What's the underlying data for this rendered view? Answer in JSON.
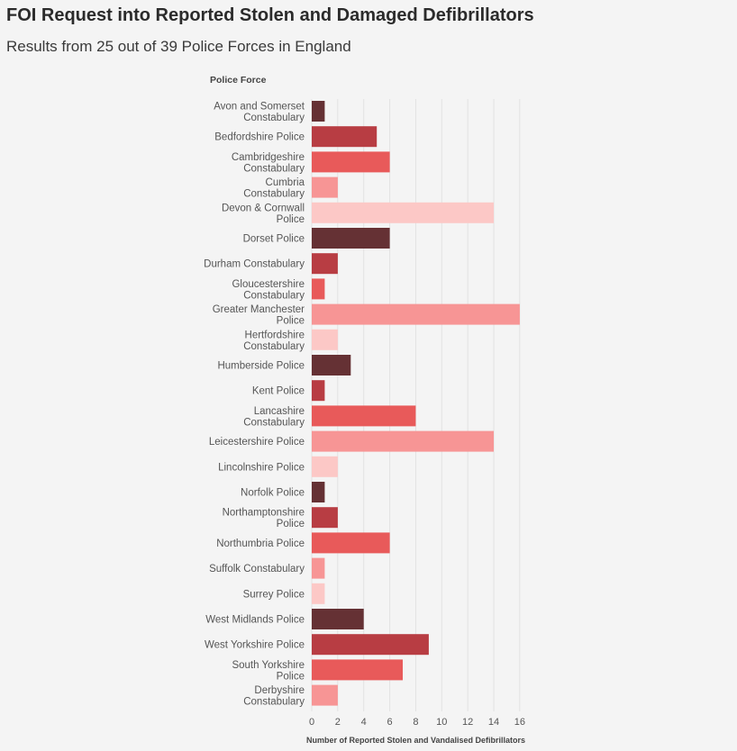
{
  "title": "FOI Request into Reported Stolen and Damaged Defibrillators",
  "subtitle": "Results from 25 out of 39 Police Forces in England",
  "chart_data": {
    "type": "bar",
    "orientation": "horizontal",
    "ylabel": "Police Force",
    "xlabel": "Number of Reported Stolen and Vandalised Defibrillators",
    "xlim": [
      0,
      16
    ],
    "xticks": [
      0,
      2,
      4,
      6,
      8,
      10,
      12,
      14,
      16
    ],
    "grid": true,
    "colors": [
      "#653134",
      "#b83d43",
      "#e85a5a",
      "#f79595",
      "#fcc8c6"
    ],
    "categories": [
      [
        "Avon and Somerset",
        "Constabulary"
      ],
      [
        "Bedfordshire Police"
      ],
      [
        "Cambridgeshire",
        "Constabulary"
      ],
      [
        "Cumbria",
        "Constabulary"
      ],
      [
        "Devon & Cornwall",
        "Police"
      ],
      [
        "Dorset Police"
      ],
      [
        "Durham Constabulary"
      ],
      [
        "Gloucestershire",
        "Constabulary"
      ],
      [
        "Greater Manchester",
        "Police"
      ],
      [
        "Hertfordshire",
        "Constabulary"
      ],
      [
        "Humberside Police"
      ],
      [
        "Kent Police"
      ],
      [
        "Lancashire",
        "Constabulary"
      ],
      [
        "Leicestershire Police"
      ],
      [
        "Lincolnshire Police"
      ],
      [
        "Norfolk Police"
      ],
      [
        "Northamptonshire",
        "Police"
      ],
      [
        "Northumbria Police"
      ],
      [
        "Suffolk Constabulary"
      ],
      [
        "Surrey Police"
      ],
      [
        "West Midlands Police"
      ],
      [
        "West Yorkshire Police"
      ],
      [
        "South Yorkshire",
        "Police"
      ],
      [
        "Derbyshire",
        "Constabulary"
      ]
    ],
    "values": [
      1,
      5,
      6,
      2,
      14,
      6,
      2,
      1,
      16,
      2,
      3,
      1,
      8,
      14,
      2,
      1,
      2,
      6,
      1,
      1,
      4,
      9,
      7,
      2
    ]
  }
}
